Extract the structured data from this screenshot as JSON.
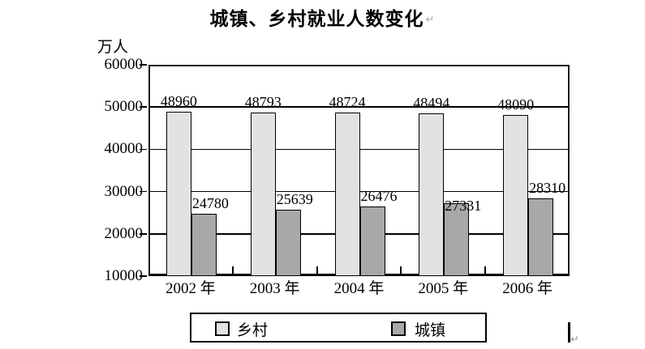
{
  "title": "城镇、乡村就业人数变化",
  "paragraph_mark": "↵",
  "cursor_paragraph_mark": "↵",
  "chart_data": {
    "type": "bar",
    "title": "城镇、乡村就业人数变化",
    "unit_label": "万人",
    "categories": [
      "2002 年",
      "2003 年",
      "2004 年",
      "2005 年",
      "2006 年"
    ],
    "series": [
      {
        "name": "乡村",
        "color": "#e2e2e2",
        "values": [
          48960,
          48793,
          48724,
          48494,
          48090
        ]
      },
      {
        "name": "城镇",
        "color": "#a8a8a8",
        "values": [
          24780,
          25639,
          26476,
          27331,
          28310
        ]
      }
    ],
    "y_ticks": [
      10000,
      20000,
      30000,
      40000,
      50000,
      60000
    ],
    "ylim": [
      10000,
      60000
    ],
    "xlabel": "",
    "ylabel": "万人",
    "grid": true,
    "data_labels": true,
    "legend_position": "bottom",
    "legend_labels": [
      "乡村",
      "城镇"
    ]
  }
}
